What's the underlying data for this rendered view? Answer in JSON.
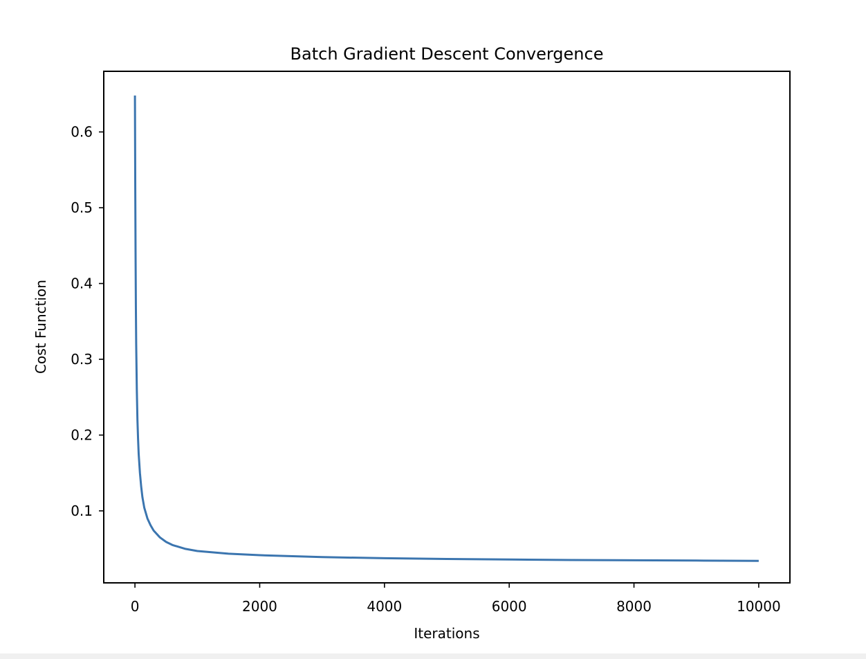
{
  "chart_data": {
    "type": "line",
    "title": "Batch Gradient Descent Convergence",
    "xlabel": "Iterations",
    "ylabel": "Cost Function",
    "xlim": [
      -500,
      10500
    ],
    "ylim": [
      0.005,
      0.68
    ],
    "xticks": [
      0,
      2000,
      4000,
      6000,
      8000,
      10000
    ],
    "xtick_labels": [
      "0",
      "2000",
      "4000",
      "6000",
      "8000",
      "10000"
    ],
    "yticks": [
      0.1,
      0.2,
      0.3,
      0.4,
      0.5,
      0.6
    ],
    "ytick_labels": [
      "0.1",
      "0.2",
      "0.3",
      "0.4",
      "0.5",
      "0.6"
    ],
    "grid": false,
    "legend": false,
    "series": [
      {
        "color": "#3b75af",
        "x": [
          0,
          5,
          10,
          15,
          20,
          30,
          40,
          50,
          60,
          80,
          100,
          120,
          150,
          200,
          250,
          300,
          400,
          500,
          600,
          800,
          1000,
          1500,
          2000,
          3000,
          4000,
          5000,
          6000,
          7000,
          8000,
          9000,
          10000
        ],
        "y": [
          0.648,
          0.53,
          0.44,
          0.37,
          0.32,
          0.26,
          0.22,
          0.195,
          0.175,
          0.15,
          0.132,
          0.118,
          0.104,
          0.09,
          0.081,
          0.074,
          0.065,
          0.059,
          0.055,
          0.05,
          0.047,
          0.0435,
          0.0415,
          0.039,
          0.0375,
          0.0365,
          0.0358,
          0.0352,
          0.0348,
          0.0344,
          0.034
        ]
      }
    ]
  }
}
